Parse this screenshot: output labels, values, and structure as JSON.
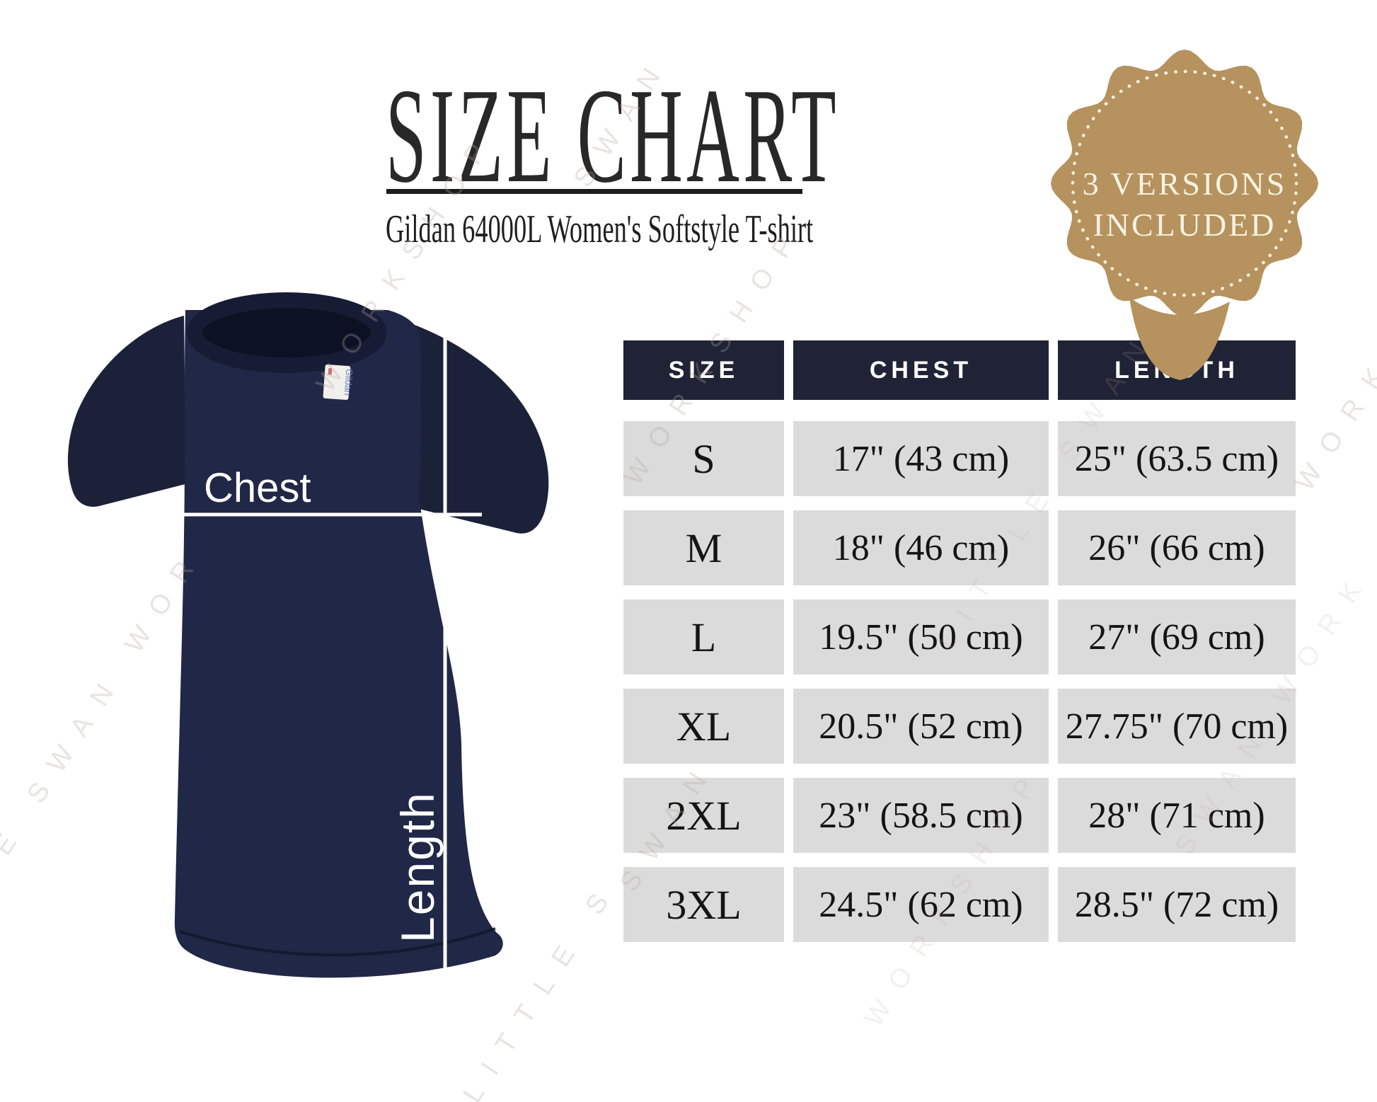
{
  "header": {
    "title": "SIZE CHART",
    "subtitle": "Gildan 64000L Women's Softstyle T-shirt"
  },
  "badge": {
    "line1": "3 VERSIONS",
    "line2": "INCLUDED",
    "gold_color": "#b5925e",
    "text_color": "#f8f2e2"
  },
  "shirt": {
    "chest_label": "Chest",
    "length_label": "Length",
    "tag_text": "Gildan",
    "navy_color": "#202747"
  },
  "table_style": {
    "header_bg": "#1f2335",
    "row_bg": "#dbdbdb"
  },
  "watermark": {
    "text": "LITTLE SWAN WORKSHOP",
    "fragments": [
      "WORKSHOP",
      "WORKSHOP",
      "SWAN",
      "WORKS",
      "LITTLE SWAN",
      "E SWAN WOR",
      "SWAN",
      "LITTLE S",
      "WORKSHOP",
      "SWAN WORK"
    ]
  },
  "chart_data": {
    "type": "table",
    "title": "SIZE CHART",
    "subtitle": "Gildan 64000L Women's Softstyle T-shirt",
    "badge_note": "3 VERSIONS INCLUDED",
    "columns": [
      "SIZE",
      "CHEST",
      "LENGTH"
    ],
    "rows": [
      [
        "S",
        "17\" (43 cm)",
        "25\" (63.5 cm)"
      ],
      [
        "M",
        "18\" (46 cm)",
        "26\" (66 cm)"
      ],
      [
        "L",
        "19.5\" (50 cm)",
        "27\" (69 cm)"
      ],
      [
        "XL",
        "20.5\" (52 cm)",
        "27.75\" (70 cm)"
      ],
      [
        "2XL",
        "23\" (58.5 cm)",
        "28\" (71 cm)"
      ],
      [
        "3XL",
        "24.5\" (62 cm)",
        "28.5\" (72 cm)"
      ]
    ]
  }
}
